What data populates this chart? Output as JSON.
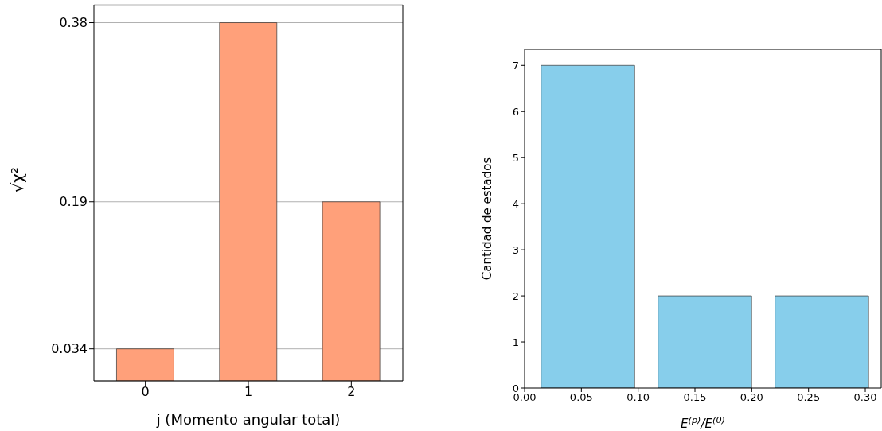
{
  "chart_data": [
    {
      "type": "bar",
      "categories": [
        "0",
        "1",
        "2"
      ],
      "values": [
        0.034,
        0.38,
        0.19
      ],
      "color": "#ffa07a",
      "xlabel": "j (Momento angular total)",
      "ylabel": "√χ²",
      "ylim": [
        0,
        0.399
      ],
      "yticks": [
        0.034,
        0.19,
        0.38
      ],
      "grid": "y"
    },
    {
      "type": "histogram",
      "bins": [
        0.004,
        0.107,
        0.21,
        0.313
      ],
      "values": [
        7,
        2,
        2
      ],
      "color": "#87ceeb",
      "xlabel": "E$^{(p)}$/E$^{(0)}$",
      "ylabel": "Cantidad de estados",
      "xlim": [
        0,
        0.314
      ],
      "xticks": [
        {
          "value": 0,
          "label": "0.00"
        },
        {
          "value": 0.05,
          "label": "0.05"
        },
        {
          "value": 0.1,
          "label": "0.10"
        },
        {
          "value": 0.15,
          "label": "0.15"
        },
        {
          "value": 0.2,
          "label": "0.20"
        },
        {
          "value": 0.25,
          "label": "0.25"
        },
        {
          "value": 0.3,
          "label": "0.30"
        }
      ],
      "ylim": [
        0,
        7.35
      ],
      "yticks": [
        0,
        1,
        2,
        3,
        4,
        5,
        6,
        7
      ],
      "grid": false
    }
  ]
}
